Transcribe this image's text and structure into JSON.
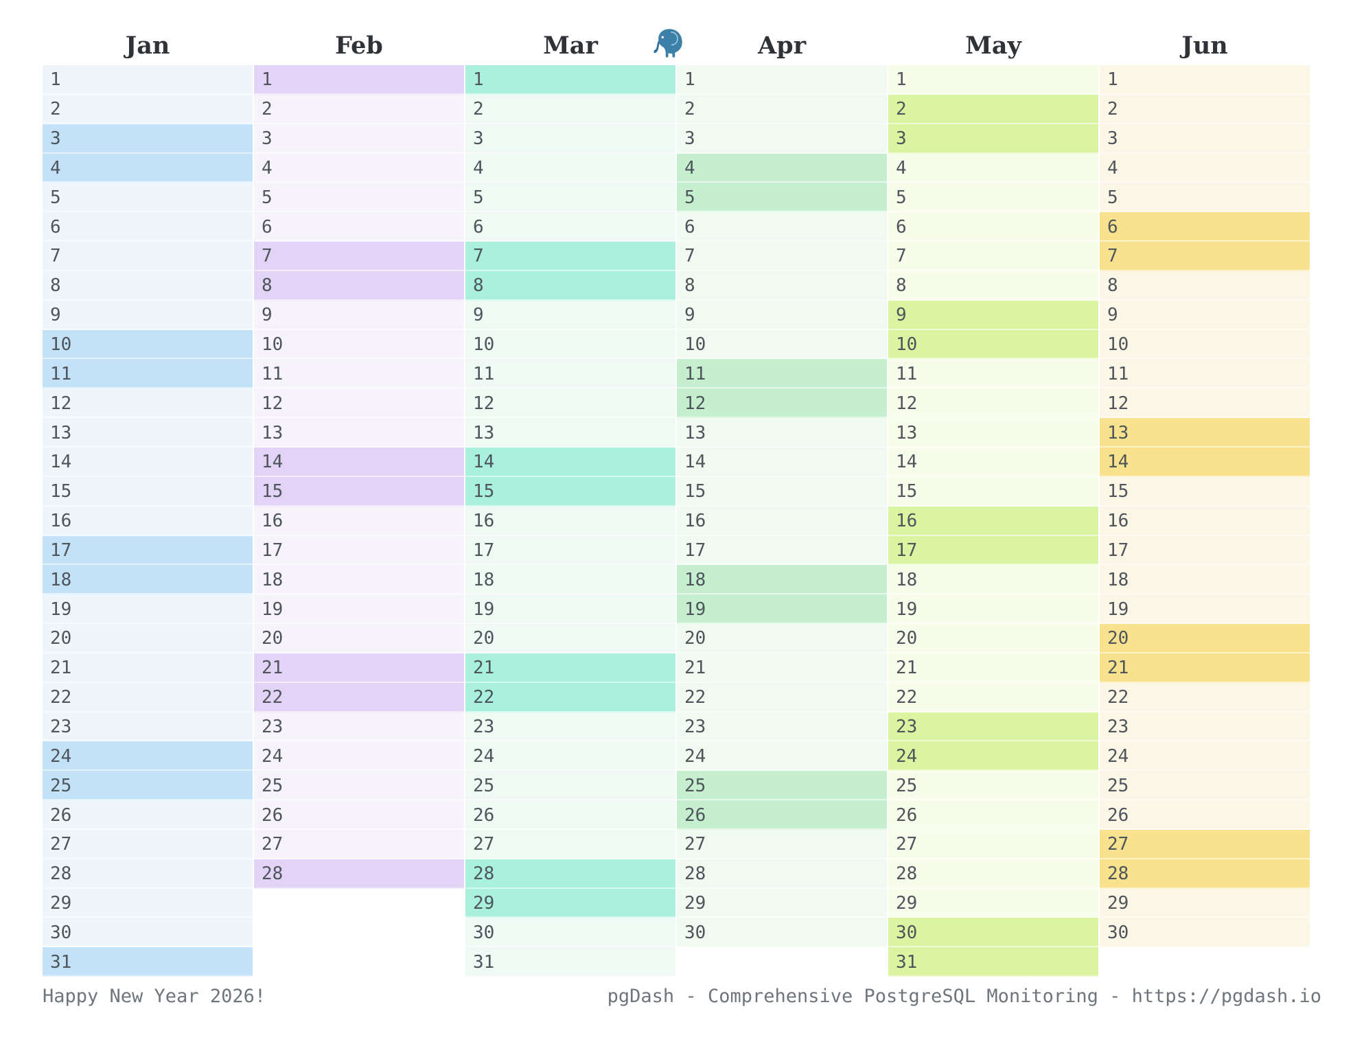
{
  "calendar": {
    "year_note": "Happy New Year 2026!",
    "months": [
      {
        "label": "Jan",
        "days": 31,
        "weekends": [
          3,
          4,
          10,
          11,
          17,
          18,
          24,
          25,
          31
        ],
        "base_color": "#eef6fc",
        "weekend_color": "#c3e2f8"
      },
      {
        "label": "Feb",
        "days": 28,
        "weekends": [
          1,
          7,
          8,
          14,
          15,
          21,
          22,
          28
        ],
        "base_color": "#f7f3fb",
        "weekend_color": "#e3d3f6"
      },
      {
        "label": "Mar",
        "days": 31,
        "weekends": [
          1,
          7,
          8,
          14,
          15,
          21,
          22,
          28,
          29
        ],
        "base_color": "#effaf5",
        "weekend_color": "#a9f0dd"
      },
      {
        "label": "Apr",
        "days": 30,
        "weekends": [
          4,
          5,
          11,
          12,
          18,
          19,
          25,
          26
        ],
        "base_color": "#f0faf1",
        "weekend_color": "#c5efce"
      },
      {
        "label": "May",
        "days": 31,
        "weekends": [
          2,
          3,
          9,
          10,
          16,
          17,
          23,
          24,
          30,
          31
        ],
        "base_color": "#f8fcea",
        "weekend_color": "#dbf4a1"
      },
      {
        "label": "Jun",
        "days": 30,
        "weekends": [
          6,
          7,
          13,
          14,
          20,
          21,
          27,
          28
        ],
        "base_color": "#fbf6e5",
        "weekend_color": "#f8e28e"
      }
    ],
    "day_text_color": "#4e555b",
    "header_text_color": "#2f3337"
  },
  "logo": {
    "name": "postgresql-elephant",
    "body_color": "#3c7fa7",
    "shade_color": "#2f6f96",
    "ear_line_color": "#9ccbe2",
    "eye_color": "#ffffff"
  },
  "footer": {
    "left": "Happy New Year 2026!",
    "right": "pgDash - Comprehensive PostgreSQL Monitoring - https://pgdash.io",
    "text_color": "#6e757c"
  }
}
